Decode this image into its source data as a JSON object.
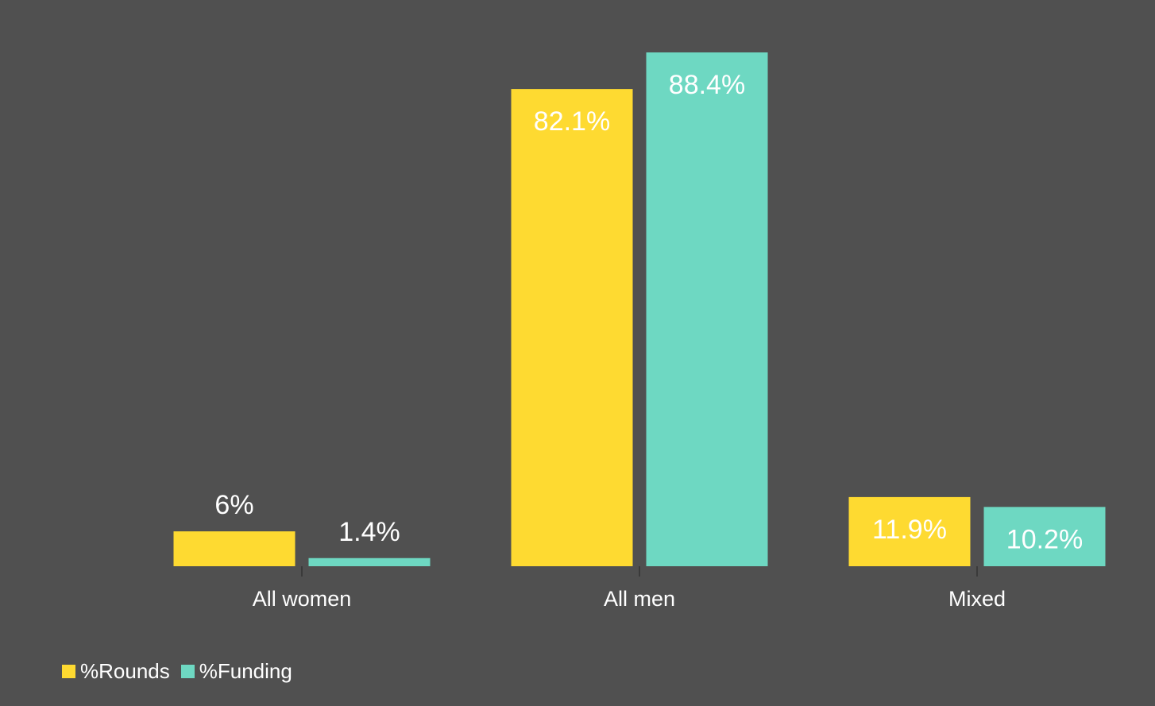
{
  "colors": {
    "background": "#505050",
    "rounds": "#FEDA31",
    "funding": "#6ED8C2",
    "text": "#FFFFFF",
    "axis": "#3A3A3A"
  },
  "legend": {
    "items": [
      {
        "label": "%Rounds",
        "color_key": "rounds"
      },
      {
        "label": "%Funding",
        "color_key": "funding"
      }
    ],
    "position": "bottom-left"
  },
  "chart_data": {
    "type": "bar",
    "categories": [
      "All women",
      "All men",
      "Mixed"
    ],
    "series": [
      {
        "name": "%Rounds",
        "values": [
          6,
          82.1,
          11.9
        ],
        "labels": [
          "6%",
          "82.1%",
          "11.9%"
        ]
      },
      {
        "name": "%Funding",
        "values": [
          1.4,
          88.4,
          10.2
        ],
        "labels": [
          "1.4%",
          "88.4%",
          "10.2%"
        ]
      }
    ],
    "title": "",
    "xlabel": "",
    "ylabel": "",
    "ylim": [
      0,
      88.4
    ],
    "grid": false,
    "legend_position": "bottom-left"
  }
}
